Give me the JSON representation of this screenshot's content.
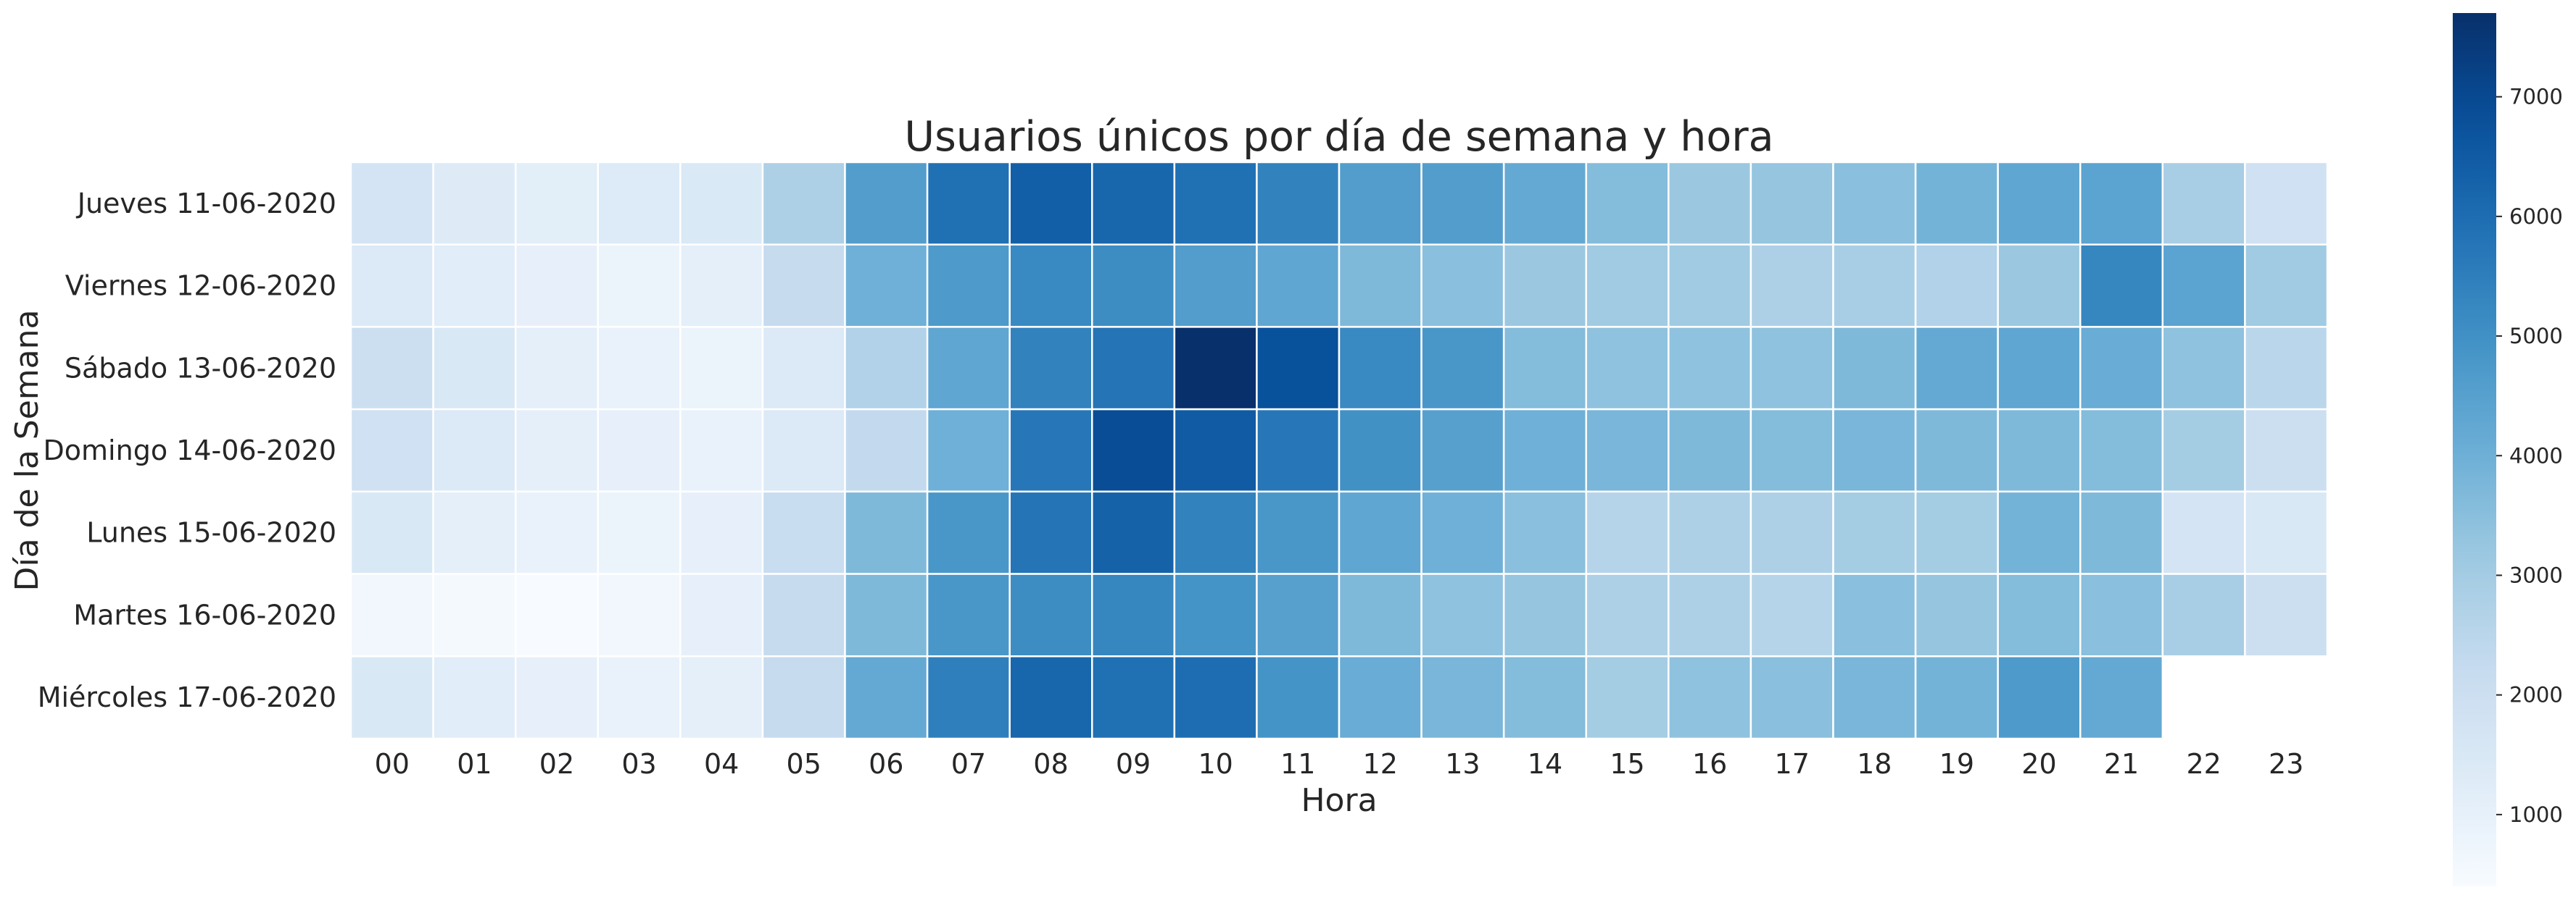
{
  "chart_data": {
    "type": "heatmap",
    "title": "Usuarios únicos por día de semana y hora",
    "xlabel": "Hora",
    "ylabel": "Día de la Semana",
    "x_categories": [
      "00",
      "01",
      "02",
      "03",
      "04",
      "05",
      "06",
      "07",
      "08",
      "09",
      "10",
      "11",
      "12",
      "13",
      "14",
      "15",
      "16",
      "17",
      "18",
      "19",
      "20",
      "21",
      "22",
      "23"
    ],
    "y_categories": [
      "Jueves 11-06-2020",
      "Viernes 12-06-2020",
      "Sábado 13-06-2020",
      "Domingo 14-06-2020",
      "Lunes 15-06-2020",
      "Martes 16-06-2020",
      "Miércoles 17-06-2020"
    ],
    "values": [
      [
        1700,
        1300,
        1150,
        1350,
        1450,
        2800,
        4600,
        5900,
        6400,
        6200,
        5900,
        5400,
        4600,
        4600,
        4200,
        3600,
        3200,
        3300,
        3500,
        3900,
        4300,
        4400,
        2900,
        1900
      ],
      [
        1400,
        1200,
        1000,
        800,
        1100,
        2200,
        4000,
        4700,
        5200,
        5100,
        4600,
        4300,
        3700,
        3500,
        3200,
        3100,
        3100,
        2800,
        2900,
        2700,
        3200,
        5300,
        4400,
        3100
      ],
      [
        2000,
        1500,
        1100,
        900,
        800,
        1400,
        2700,
        4300,
        5400,
        5800,
        7700,
        6800,
        5200,
        4800,
        3600,
        3400,
        3400,
        3400,
        3700,
        4200,
        4300,
        4100,
        3400,
        2500
      ],
      [
        1900,
        1400,
        1100,
        1000,
        900,
        1400,
        2300,
        4000,
        5700,
        6900,
        6500,
        5700,
        5000,
        4500,
        4000,
        3800,
        3700,
        3600,
        3800,
        3700,
        3700,
        3600,
        3000,
        2000
      ],
      [
        1500,
        1100,
        900,
        800,
        1000,
        2100,
        3700,
        4800,
        5800,
        6300,
        5400,
        4800,
        4300,
        4000,
        3500,
        2600,
        2800,
        2800,
        3000,
        3000,
        3900,
        3700,
        1700,
        1500
      ],
      [
        600,
        500,
        400,
        600,
        1000,
        2200,
        3700,
        4800,
        5100,
        5300,
        4900,
        4500,
        3700,
        3400,
        3300,
        2800,
        2800,
        2600,
        3500,
        3300,
        3600,
        3500,
        2900,
        2000
      ],
      [
        1500,
        1200,
        1000,
        900,
        1100,
        2200,
        4200,
        5500,
        6200,
        5900,
        6000,
        4900,
        4100,
        3800,
        3600,
        3000,
        3400,
        3500,
        3800,
        3900,
        4700,
        4200,
        null,
        null
      ]
    ],
    "vmin": 400,
    "vmax": 7700,
    "colorbar_ticks": [
      1000,
      2000,
      3000,
      4000,
      5000,
      6000,
      7000
    ],
    "colormap": "Blues",
    "grid_line_color": "#ffffff"
  }
}
